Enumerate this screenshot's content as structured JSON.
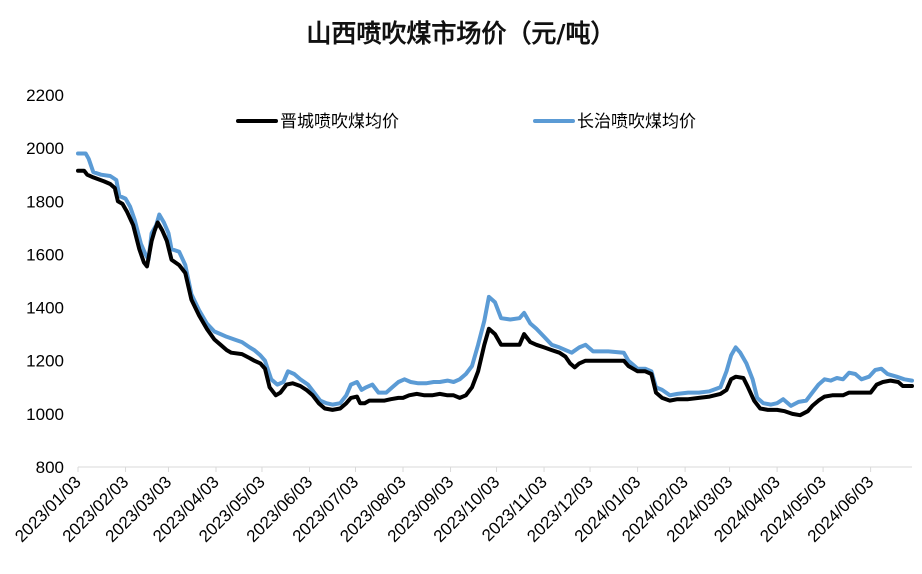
{
  "chart_data": {
    "type": "line",
    "title": "山西喷吹煤市场价（元/吨）",
    "xlabel": "",
    "ylabel": "",
    "ylim": [
      800,
      2200
    ],
    "yticks": [
      800,
      1000,
      1200,
      1400,
      1600,
      1800,
      2000,
      2200
    ],
    "xticks": [
      "2023/01/03",
      "2023/02/03",
      "2023/03/03",
      "2023/04/03",
      "2023/05/03",
      "2023/06/03",
      "2023/07/03",
      "2023/08/03",
      "2023/09/03",
      "2023/10/03",
      "2023/11/03",
      "2023/12/03",
      "2024/01/03",
      "2024/02/03",
      "2024/03/03",
      "2024/04/03",
      "2024/05/03",
      "2024/06/03"
    ],
    "x_range": [
      "2023/01/03",
      "2024/06/30"
    ],
    "legend_position": "top",
    "grid": false,
    "series": [
      {
        "name": "晋城喷吹煤均价",
        "color": "#000000",
        "points": [
          [
            "2023/01/03",
            1915
          ],
          [
            "2023/01/07",
            1915
          ],
          [
            "2023/01/09",
            1900
          ],
          [
            "2023/01/13",
            1890
          ],
          [
            "2023/01/20",
            1875
          ],
          [
            "2023/01/24",
            1865
          ],
          [
            "2023/01/27",
            1850
          ],
          [
            "2023/01/29",
            1800
          ],
          [
            "2023/02/01",
            1790
          ],
          [
            "2023/02/04",
            1760
          ],
          [
            "2023/02/08",
            1710
          ],
          [
            "2023/02/12",
            1620
          ],
          [
            "2023/02/15",
            1570
          ],
          [
            "2023/02/17",
            1555
          ],
          [
            "2023/02/20",
            1650
          ],
          [
            "2023/02/22",
            1690
          ],
          [
            "2023/02/24",
            1720
          ],
          [
            "2023/02/27",
            1690
          ],
          [
            "2023/03/02",
            1650
          ],
          [
            "2023/03/05",
            1580
          ],
          [
            "2023/03/10",
            1560
          ],
          [
            "2023/03/14",
            1530
          ],
          [
            "2023/03/18",
            1430
          ],
          [
            "2023/03/23",
            1370
          ],
          [
            "2023/03/28",
            1320
          ],
          [
            "2023/04/02",
            1280
          ],
          [
            "2023/04/06",
            1260
          ],
          [
            "2023/04/10",
            1240
          ],
          [
            "2023/04/13",
            1230
          ],
          [
            "2023/04/20",
            1225
          ],
          [
            "2023/04/25",
            1210
          ],
          [
            "2023/04/28",
            1200
          ],
          [
            "2023/05/02",
            1190
          ],
          [
            "2023/05/05",
            1170
          ],
          [
            "2023/05/08",
            1100
          ],
          [
            "2023/05/12",
            1070
          ],
          [
            "2023/05/15",
            1080
          ],
          [
            "2023/05/19",
            1110
          ],
          [
            "2023/05/23",
            1115
          ],
          [
            "2023/05/28",
            1105
          ],
          [
            "2023/06/01",
            1090
          ],
          [
            "2023/06/05",
            1070
          ],
          [
            "2023/06/09",
            1040
          ],
          [
            "2023/06/13",
            1020
          ],
          [
            "2023/06/18",
            1015
          ],
          [
            "2023/06/23",
            1020
          ],
          [
            "2023/06/27",
            1040
          ],
          [
            "2023/06/30",
            1060
          ],
          [
            "2023/07/04",
            1065
          ],
          [
            "2023/07/06",
            1040
          ],
          [
            "2023/07/09",
            1040
          ],
          [
            "2023/07/12",
            1050
          ],
          [
            "2023/07/17",
            1050
          ],
          [
            "2023/07/22",
            1050
          ],
          [
            "2023/07/26",
            1055
          ],
          [
            "2023/07/31",
            1060
          ],
          [
            "2023/08/03",
            1060
          ],
          [
            "2023/08/07",
            1070
          ],
          [
            "2023/08/12",
            1075
          ],
          [
            "2023/08/17",
            1070
          ],
          [
            "2023/08/22",
            1070
          ],
          [
            "2023/08/27",
            1075
          ],
          [
            "2023/09/01",
            1070
          ],
          [
            "2023/09/05",
            1070
          ],
          [
            "2023/09/09",
            1060
          ],
          [
            "2023/09/13",
            1070
          ],
          [
            "2023/09/17",
            1100
          ],
          [
            "2023/09/21",
            1160
          ],
          [
            "2023/09/25",
            1260
          ],
          [
            "2023/09/28",
            1320
          ],
          [
            "2023/10/02",
            1300
          ],
          [
            "2023/10/06",
            1260
          ],
          [
            "2023/10/12",
            1260
          ],
          [
            "2023/10/18",
            1260
          ],
          [
            "2023/10/21",
            1300
          ],
          [
            "2023/10/25",
            1270
          ],
          [
            "2023/10/29",
            1260
          ],
          [
            "2023/11/03",
            1250
          ],
          [
            "2023/11/08",
            1240
          ],
          [
            "2023/11/13",
            1230
          ],
          [
            "2023/11/17",
            1215
          ],
          [
            "2023/11/20",
            1190
          ],
          [
            "2023/11/23",
            1175
          ],
          [
            "2023/11/26",
            1190
          ],
          [
            "2023/11/30",
            1200
          ],
          [
            "2023/12/05",
            1200
          ],
          [
            "2023/12/15",
            1200
          ],
          [
            "2023/12/25",
            1200
          ],
          [
            "2023/12/28",
            1180
          ],
          [
            "2024/01/03",
            1160
          ],
          [
            "2024/01/08",
            1160
          ],
          [
            "2024/01/12",
            1150
          ],
          [
            "2024/01/15",
            1080
          ],
          [
            "2024/01/19",
            1060
          ],
          [
            "2024/01/24",
            1050
          ],
          [
            "2024/01/29",
            1055
          ],
          [
            "2024/02/05",
            1055
          ],
          [
            "2024/02/12",
            1060
          ],
          [
            "2024/02/19",
            1065
          ],
          [
            "2024/02/26",
            1075
          ],
          [
            "2024/03/01",
            1090
          ],
          [
            "2024/03/04",
            1130
          ],
          [
            "2024/03/07",
            1140
          ],
          [
            "2024/03/12",
            1135
          ],
          [
            "2024/03/15",
            1100
          ],
          [
            "2024/03/19",
            1050
          ],
          [
            "2024/03/23",
            1020
          ],
          [
            "2024/03/28",
            1015
          ],
          [
            "2024/04/03",
            1015
          ],
          [
            "2024/04/08",
            1010
          ],
          [
            "2024/04/13",
            1000
          ],
          [
            "2024/04/18",
            995
          ],
          [
            "2024/04/23",
            1010
          ],
          [
            "2024/04/26",
            1030
          ],
          [
            "2024/04/30",
            1050
          ],
          [
            "2024/05/04",
            1065
          ],
          [
            "2024/05/09",
            1070
          ],
          [
            "2024/05/16",
            1070
          ],
          [
            "2024/05/20",
            1080
          ],
          [
            "2024/05/27",
            1080
          ],
          [
            "2024/06/03",
            1080
          ],
          [
            "2024/06/07",
            1110
          ],
          [
            "2024/06/11",
            1120
          ],
          [
            "2024/06/16",
            1125
          ],
          [
            "2024/06/21",
            1120
          ],
          [
            "2024/06/24",
            1105
          ],
          [
            "2024/06/30",
            1105
          ]
        ]
      },
      {
        "name": "长治喷吹煤均价",
        "color": "#5b9bd5",
        "points": [
          [
            "2023/01/03",
            1980
          ],
          [
            "2023/01/08",
            1980
          ],
          [
            "2023/01/10",
            1960
          ],
          [
            "2023/01/13",
            1910
          ],
          [
            "2023/01/18",
            1900
          ],
          [
            "2023/01/24",
            1895
          ],
          [
            "2023/01/28",
            1880
          ],
          [
            "2023/01/30",
            1820
          ],
          [
            "2023/02/03",
            1810
          ],
          [
            "2023/02/06",
            1780
          ],
          [
            "2023/02/09",
            1730
          ],
          [
            "2023/02/13",
            1640
          ],
          [
            "2023/02/16",
            1600
          ],
          [
            "2023/02/18",
            1580
          ],
          [
            "2023/02/20",
            1680
          ],
          [
            "2023/02/23",
            1710
          ],
          [
            "2023/02/25",
            1750
          ],
          [
            "2023/02/28",
            1720
          ],
          [
            "2023/03/03",
            1680
          ],
          [
            "2023/03/05",
            1620
          ],
          [
            "2023/03/10",
            1610
          ],
          [
            "2023/03/14",
            1560
          ],
          [
            "2023/03/18",
            1450
          ],
          [
            "2023/03/23",
            1390
          ],
          [
            "2023/03/28",
            1340
          ],
          [
            "2023/04/02",
            1310
          ],
          [
            "2023/04/06",
            1300
          ],
          [
            "2023/04/10",
            1290
          ],
          [
            "2023/04/15",
            1280
          ],
          [
            "2023/04/20",
            1270
          ],
          [
            "2023/04/25",
            1250
          ],
          [
            "2023/04/28",
            1240
          ],
          [
            "2023/05/02",
            1220
          ],
          [
            "2023/05/05",
            1200
          ],
          [
            "2023/05/09",
            1130
          ],
          [
            "2023/05/13",
            1110
          ],
          [
            "2023/05/17",
            1120
          ],
          [
            "2023/05/20",
            1160
          ],
          [
            "2023/05/24",
            1150
          ],
          [
            "2023/05/28",
            1130
          ],
          [
            "2023/06/02",
            1110
          ],
          [
            "2023/06/06",
            1080
          ],
          [
            "2023/06/10",
            1050
          ],
          [
            "2023/06/14",
            1040
          ],
          [
            "2023/06/18",
            1035
          ],
          [
            "2023/06/23",
            1040
          ],
          [
            "2023/06/27",
            1070
          ],
          [
            "2023/06/30",
            1110
          ],
          [
            "2023/07/04",
            1120
          ],
          [
            "2023/07/07",
            1090
          ],
          [
            "2023/07/10",
            1100
          ],
          [
            "2023/07/14",
            1110
          ],
          [
            "2023/07/18",
            1080
          ],
          [
            "2023/07/23",
            1080
          ],
          [
            "2023/07/27",
            1100
          ],
          [
            "2023/07/31",
            1120
          ],
          [
            "2023/08/04",
            1130
          ],
          [
            "2023/08/08",
            1120
          ],
          [
            "2023/08/13",
            1115
          ],
          [
            "2023/08/18",
            1115
          ],
          [
            "2023/08/23",
            1120
          ],
          [
            "2023/08/27",
            1120
          ],
          [
            "2023/09/01",
            1125
          ],
          [
            "2023/09/05",
            1120
          ],
          [
            "2023/09/09",
            1130
          ],
          [
            "2023/09/13",
            1150
          ],
          [
            "2023/09/17",
            1180
          ],
          [
            "2023/09/21",
            1260
          ],
          [
            "2023/09/25",
            1350
          ],
          [
            "2023/09/28",
            1440
          ],
          [
            "2023/10/02",
            1420
          ],
          [
            "2023/10/06",
            1360
          ],
          [
            "2023/10/12",
            1355
          ],
          [
            "2023/10/18",
            1360
          ],
          [
            "2023/10/21",
            1380
          ],
          [
            "2023/10/25",
            1340
          ],
          [
            "2023/10/29",
            1320
          ],
          [
            "2023/11/03",
            1290
          ],
          [
            "2023/11/08",
            1260
          ],
          [
            "2023/11/13",
            1250
          ],
          [
            "2023/11/17",
            1240
          ],
          [
            "2023/11/21",
            1230
          ],
          [
            "2023/11/26",
            1250
          ],
          [
            "2023/11/30",
            1260
          ],
          [
            "2023/12/05",
            1235
          ],
          [
            "2023/12/15",
            1235
          ],
          [
            "2023/12/25",
            1230
          ],
          [
            "2023/12/28",
            1200
          ],
          [
            "2024/01/03",
            1170
          ],
          [
            "2024/01/08",
            1170
          ],
          [
            "2024/01/12",
            1160
          ],
          [
            "2024/01/15",
            1100
          ],
          [
            "2024/01/19",
            1090
          ],
          [
            "2024/01/24",
            1070
          ],
          [
            "2024/01/29",
            1075
          ],
          [
            "2024/02/05",
            1080
          ],
          [
            "2024/02/12",
            1080
          ],
          [
            "2024/02/19",
            1085
          ],
          [
            "2024/02/26",
            1100
          ],
          [
            "2024/03/01",
            1160
          ],
          [
            "2024/03/04",
            1220
          ],
          [
            "2024/03/07",
            1250
          ],
          [
            "2024/03/10",
            1230
          ],
          [
            "2024/03/14",
            1190
          ],
          [
            "2024/03/18",
            1130
          ],
          [
            "2024/03/21",
            1060
          ],
          [
            "2024/03/25",
            1040
          ],
          [
            "2024/03/30",
            1035
          ],
          [
            "2024/04/03",
            1040
          ],
          [
            "2024/04/07",
            1055
          ],
          [
            "2024/04/12",
            1030
          ],
          [
            "2024/04/17",
            1045
          ],
          [
            "2024/04/22",
            1050
          ],
          [
            "2024/04/26",
            1080
          ],
          [
            "2024/04/30",
            1110
          ],
          [
            "2024/05/04",
            1130
          ],
          [
            "2024/05/08",
            1125
          ],
          [
            "2024/05/12",
            1135
          ],
          [
            "2024/05/16",
            1130
          ],
          [
            "2024/05/20",
            1155
          ],
          [
            "2024/05/24",
            1150
          ],
          [
            "2024/05/28",
            1130
          ],
          [
            "2024/06/02",
            1140
          ],
          [
            "2024/06/06",
            1165
          ],
          [
            "2024/06/10",
            1170
          ],
          [
            "2024/06/14",
            1150
          ],
          [
            "2024/06/20",
            1140
          ],
          [
            "2024/06/25",
            1130
          ],
          [
            "2024/06/30",
            1125
          ]
        ]
      }
    ]
  }
}
